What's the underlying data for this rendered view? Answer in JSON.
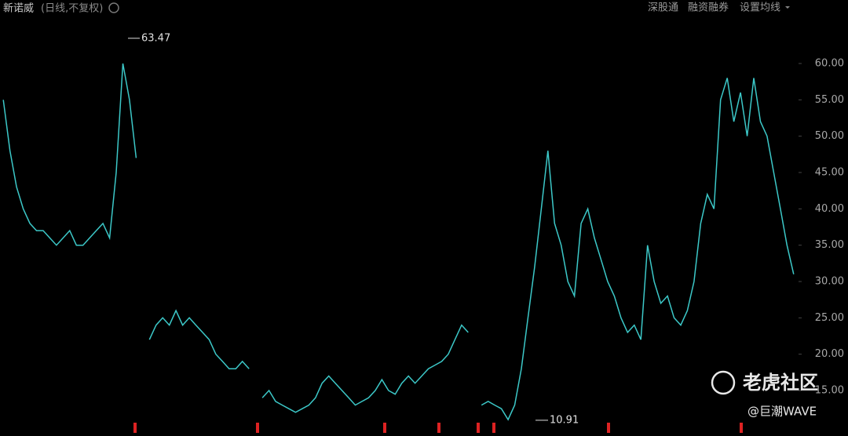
{
  "header": {
    "title": "新诺威",
    "subtitle": "(日线,不复权)",
    "toolbar": [
      "深股通",
      "融资融券",
      "设置均线"
    ]
  },
  "watermark": {
    "brand": "老虎社区",
    "author": "@巨潮WAVE"
  },
  "chart_data": {
    "type": "line",
    "values": [
      55,
      48,
      43,
      40,
      38,
      37,
      37,
      36,
      35,
      36,
      37,
      35,
      35,
      36,
      37,
      38,
      36,
      45,
      60,
      55,
      47,
      null,
      22,
      24,
      25,
      24,
      26,
      24,
      25,
      24,
      23,
      22,
      20,
      19,
      18,
      18,
      19,
      18,
      null,
      14,
      15,
      13.5,
      13,
      12.5,
      12,
      12.5,
      13,
      14,
      16,
      17,
      16,
      15,
      14,
      13,
      13.5,
      14,
      15,
      16.5,
      15,
      14.5,
      16,
      17,
      16,
      17,
      18,
      18.5,
      19,
      20,
      22,
      24,
      23,
      null,
      13,
      13.5,
      13,
      12.5,
      11,
      13,
      18,
      25,
      32,
      40,
      48,
      38,
      35,
      30,
      28,
      38,
      40,
      36,
      33,
      30,
      28,
      25,
      23,
      24,
      22,
      35,
      30,
      27,
      28,
      25,
      24,
      26,
      30,
      38,
      42,
      40,
      55,
      58,
      52,
      56,
      50,
      58,
      52,
      50,
      45,
      40,
      35,
      31
    ],
    "color": "#3cc8c8",
    "high": 63.47,
    "low": 10.91,
    "ylim": [
      10.47,
      64.42
    ],
    "yticks": [
      {
        "value": 15,
        "label": "15.00"
      },
      {
        "value": 20,
        "label": "20.00"
      },
      {
        "value": 25,
        "label": "25.00"
      },
      {
        "value": 30,
        "label": "30.00"
      },
      {
        "value": 35,
        "label": "35.00"
      },
      {
        "value": 40,
        "label": "40.00"
      },
      {
        "value": 45,
        "label": "45.00"
      },
      {
        "value": 50,
        "label": "50.00"
      },
      {
        "value": 55,
        "label": "55.00"
      },
      {
        "value": 60,
        "label": "60.00"
      }
    ],
    "grid": false
  }
}
